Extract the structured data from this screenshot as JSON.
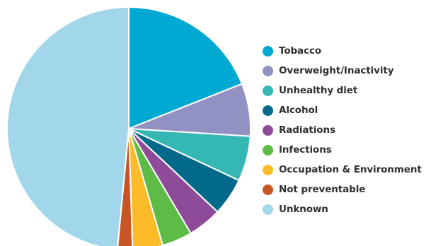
{
  "chart_data": {
    "type": "pie",
    "title": "",
    "legend_position": "right",
    "start_angle_deg": 0,
    "direction": "clockwise",
    "slices": [
      {
        "label": "Tobacco",
        "value": 19,
        "color": "#00a9d1"
      },
      {
        "label": "Overweight/Inactivity",
        "value": 7,
        "color": "#9191c4"
      },
      {
        "label": "Unhealthy diet",
        "value": 6,
        "color": "#34b7b5"
      },
      {
        "label": "Alcohol",
        "value": 5,
        "color": "#03698a"
      },
      {
        "label": "Radiations",
        "value": 4.5,
        "color": "#8e4b99"
      },
      {
        "label": "Infections",
        "value": 4,
        "color": "#5ebb48"
      },
      {
        "label": "Occupation & Environment",
        "value": 4,
        "color": "#fcbc2a"
      },
      {
        "label": "Not preventable",
        "value": 2,
        "color": "#c75624"
      },
      {
        "label": "Unknown",
        "value": 48.5,
        "color": "#a2d6ea"
      }
    ]
  }
}
